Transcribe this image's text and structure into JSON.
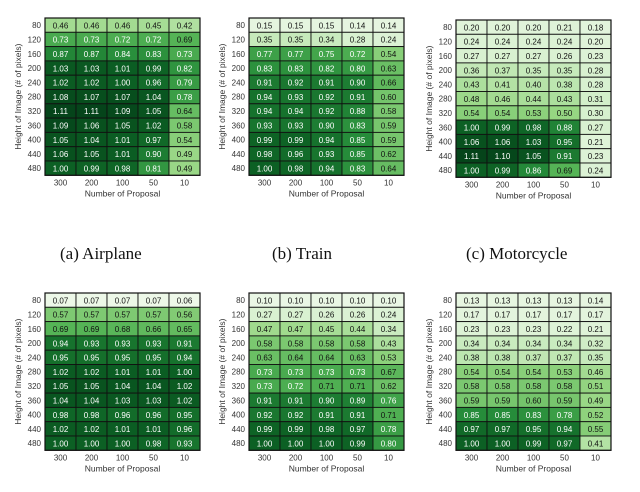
{
  "common": {
    "ylabel": "Height of Image (# of pixels)",
    "xlabel": "Number of Proposal",
    "row_labels": [
      "80",
      "120",
      "160",
      "200",
      "240",
      "280",
      "320",
      "360",
      "400",
      "440",
      "480"
    ],
    "col_labels": [
      "300",
      "200",
      "100",
      "50",
      "10"
    ]
  },
  "chart_data": [
    {
      "type": "heatmap",
      "caption": "(a) Airplane",
      "xlabel": "Number of Proposal",
      "ylabel": "Height of Image (# of pixels)",
      "rows": [
        "80",
        "120",
        "160",
        "200",
        "240",
        "280",
        "320",
        "360",
        "400",
        "440",
        "480"
      ],
      "cols": [
        "300",
        "200",
        "100",
        "50",
        "10"
      ],
      "values": [
        [
          "0.46",
          "0.46",
          "0.46",
          "0.45",
          "0.42"
        ],
        [
          "0.73",
          "0.73",
          "0.72",
          "0.72",
          "0.69"
        ],
        [
          "0.87",
          "0.87",
          "0.84",
          "0.83",
          "0.73"
        ],
        [
          "1.03",
          "1.03",
          "1.01",
          "0.99",
          "0.82"
        ],
        [
          "1.02",
          "1.02",
          "1.00",
          "0.96",
          "0.79"
        ],
        [
          "1.08",
          "1.07",
          "1.07",
          "1.04",
          "0.78"
        ],
        [
          "1.11",
          "1.11",
          "1.09",
          "1.05",
          "0.64"
        ],
        [
          "1.09",
          "1.06",
          "1.05",
          "1.02",
          "0.58"
        ],
        [
          "1.05",
          "1.04",
          "1.01",
          "0.97",
          "0.54"
        ],
        [
          "1.06",
          "1.05",
          "1.01",
          "0.90",
          "0.49"
        ],
        [
          "1.00",
          "0.99",
          "0.98",
          "0.81",
          "0.49"
        ]
      ]
    },
    {
      "type": "heatmap",
      "caption": "(b)  Train",
      "xlabel": "Number of Proposal",
      "ylabel": "Height of Image (# of pixels)",
      "rows": [
        "80",
        "120",
        "160",
        "200",
        "240",
        "280",
        "320",
        "360",
        "400",
        "440",
        "480"
      ],
      "cols": [
        "300",
        "200",
        "100",
        "50",
        "10"
      ],
      "values": [
        [
          "0.15",
          "0.15",
          "0.15",
          "0.14",
          "0.14"
        ],
        [
          "0.35",
          "0.35",
          "0.34",
          "0.28",
          "0.24"
        ],
        [
          "0.77",
          "0.77",
          "0.75",
          "0.72",
          "0.54"
        ],
        [
          "0.83",
          "0.83",
          "0.82",
          "0.80",
          "0.63"
        ],
        [
          "0.91",
          "0.92",
          "0.91",
          "0.90",
          "0.66"
        ],
        [
          "0.94",
          "0.93",
          "0.92",
          "0.91",
          "0.60"
        ],
        [
          "0.94",
          "0.94",
          "0.92",
          "0.88",
          "0.58"
        ],
        [
          "0.93",
          "0.93",
          "0.90",
          "0.83",
          "0.59"
        ],
        [
          "0.99",
          "0.99",
          "0.94",
          "0.85",
          "0.59"
        ],
        [
          "0.98",
          "0.96",
          "0.93",
          "0.85",
          "0.62"
        ],
        [
          "1.00",
          "0.98",
          "0.94",
          "0.83",
          "0.64"
        ]
      ]
    },
    {
      "type": "heatmap",
      "caption": "(c) Motorcycle",
      "xlabel": "Number of Proposal",
      "ylabel": "Height of Image (# of pixels)",
      "rows": [
        "80",
        "120",
        "160",
        "200",
        "240",
        "280",
        "320",
        "360",
        "400",
        "440",
        "480"
      ],
      "cols": [
        "300",
        "200",
        "100",
        "50",
        "10"
      ],
      "values": [
        [
          "0.20",
          "0.20",
          "0.20",
          "0.21",
          "0.18"
        ],
        [
          "0.24",
          "0.24",
          "0.24",
          "0.24",
          "0.20"
        ],
        [
          "0.27",
          "0.27",
          "0.27",
          "0.26",
          "0.23"
        ],
        [
          "0.36",
          "0.37",
          "0.35",
          "0.35",
          "0.28"
        ],
        [
          "0.43",
          "0.41",
          "0.40",
          "0.38",
          "0.28"
        ],
        [
          "0.48",
          "0.46",
          "0.44",
          "0.43",
          "0.31"
        ],
        [
          "0.54",
          "0.54",
          "0.53",
          "0.50",
          "0.30"
        ],
        [
          "1.00",
          "0.99",
          "0.98",
          "0.88",
          "0.27"
        ],
        [
          "1.06",
          "1.06",
          "1.03",
          "0.95",
          "0.21"
        ],
        [
          "1.11",
          "1.10",
          "1.05",
          "0.91",
          "0.23"
        ],
        [
          "1.00",
          "0.99",
          "0.86",
          "0.69",
          "0.24"
        ]
      ]
    },
    {
      "type": "heatmap",
      "caption": "",
      "xlabel": "Number of Proposal",
      "ylabel": "Height of Image (# of pixels)",
      "rows": [
        "80",
        "120",
        "160",
        "200",
        "240",
        "280",
        "320",
        "360",
        "400",
        "440",
        "480"
      ],
      "cols": [
        "300",
        "200",
        "100",
        "50",
        "10"
      ],
      "values": [
        [
          "0.07",
          "0.07",
          "0.07",
          "0.07",
          "0.06"
        ],
        [
          "0.57",
          "0.57",
          "0.57",
          "0.57",
          "0.56"
        ],
        [
          "0.69",
          "0.69",
          "0.68",
          "0.66",
          "0.65"
        ],
        [
          "0.94",
          "0.93",
          "0.93",
          "0.93",
          "0.91"
        ],
        [
          "0.95",
          "0.95",
          "0.95",
          "0.95",
          "0.94"
        ],
        [
          "1.02",
          "1.02",
          "1.01",
          "1.01",
          "1.00"
        ],
        [
          "1.05",
          "1.05",
          "1.04",
          "1.04",
          "1.02"
        ],
        [
          "1.04",
          "1.04",
          "1.03",
          "1.03",
          "1.02"
        ],
        [
          "0.98",
          "0.98",
          "0.96",
          "0.96",
          "0.95"
        ],
        [
          "1.02",
          "1.02",
          "1.01",
          "1.01",
          "0.96"
        ],
        [
          "1.00",
          "1.00",
          "1.00",
          "0.98",
          "0.93"
        ]
      ]
    },
    {
      "type": "heatmap",
      "caption": "",
      "xlabel": "Number of Proposal",
      "ylabel": "Height of Image (# of pixels)",
      "rows": [
        "80",
        "120",
        "160",
        "200",
        "240",
        "280",
        "320",
        "360",
        "400",
        "440",
        "480"
      ],
      "cols": [
        "300",
        "200",
        "100",
        "50",
        "10"
      ],
      "values": [
        [
          "0.10",
          "0.10",
          "0.10",
          "0.10",
          "0.10"
        ],
        [
          "0.27",
          "0.27",
          "0.26",
          "0.26",
          "0.24"
        ],
        [
          "0.47",
          "0.47",
          "0.45",
          "0.44",
          "0.34"
        ],
        [
          "0.58",
          "0.58",
          "0.58",
          "0.58",
          "0.43"
        ],
        [
          "0.63",
          "0.64",
          "0.64",
          "0.63",
          "0.53"
        ],
        [
          "0.73",
          "0.73",
          "0.73",
          "0.73",
          "0.67"
        ],
        [
          "0.73",
          "0.72",
          "0.71",
          "0.71",
          "0.62"
        ],
        [
          "0.91",
          "0.91",
          "0.90",
          "0.89",
          "0.76"
        ],
        [
          "0.92",
          "0.92",
          "0.91",
          "0.91",
          "0.71"
        ],
        [
          "0.99",
          "0.99",
          "0.98",
          "0.97",
          "0.78"
        ],
        [
          "1.00",
          "1.00",
          "1.00",
          "0.99",
          "0.80"
        ]
      ]
    },
    {
      "type": "heatmap",
      "caption": "",
      "xlabel": "Number of Proposal",
      "ylabel": "Height of Image (# of pixels)",
      "rows": [
        "80",
        "120",
        "160",
        "200",
        "240",
        "280",
        "320",
        "360",
        "400",
        "440",
        "480"
      ],
      "cols": [
        "300",
        "200",
        "100",
        "50",
        "10"
      ],
      "values": [
        [
          "0.13",
          "0.13",
          "0.13",
          "0.13",
          "0.14"
        ],
        [
          "0.17",
          "0.17",
          "0.17",
          "0.17",
          "0.17"
        ],
        [
          "0.23",
          "0.23",
          "0.23",
          "0.22",
          "0.21"
        ],
        [
          "0.34",
          "0.34",
          "0.34",
          "0.34",
          "0.32"
        ],
        [
          "0.38",
          "0.38",
          "0.37",
          "0.37",
          "0.35"
        ],
        [
          "0.54",
          "0.54",
          "0.54",
          "0.53",
          "0.46"
        ],
        [
          "0.58",
          "0.58",
          "0.58",
          "0.58",
          "0.51"
        ],
        [
          "0.59",
          "0.59",
          "0.60",
          "0.59",
          "0.49"
        ],
        [
          "0.85",
          "0.85",
          "0.83",
          "0.78",
          "0.52"
        ],
        [
          "0.97",
          "0.97",
          "0.95",
          "0.94",
          "0.55"
        ],
        [
          "1.00",
          "1.00",
          "0.99",
          "0.97",
          "0.41"
        ]
      ]
    }
  ]
}
